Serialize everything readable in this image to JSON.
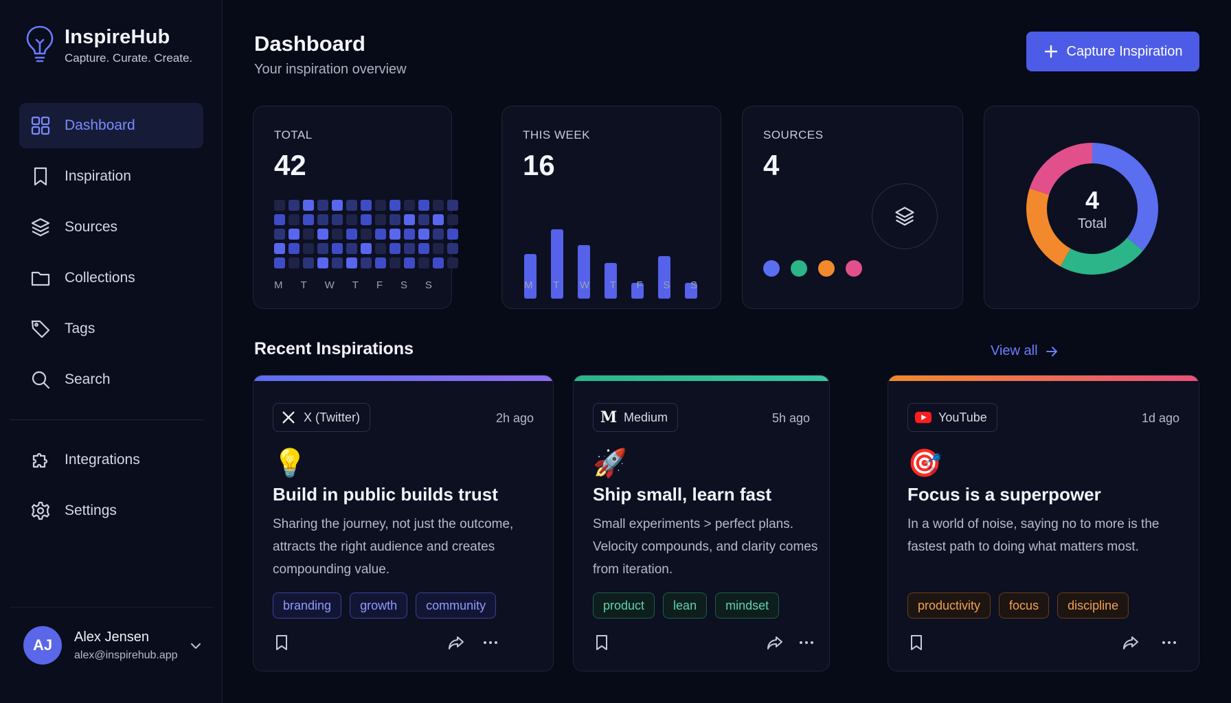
{
  "brand": {
    "name": "InspireHub",
    "tagline": "Capture. Curate. Create."
  },
  "nav": {
    "items": [
      {
        "label": "Dashboard",
        "icon": "grid-icon",
        "active": true
      },
      {
        "label": "Inspiration",
        "icon": "bookmark-icon"
      },
      {
        "label": "Sources",
        "icon": "layers-icon"
      },
      {
        "label": "Collections",
        "icon": "folder-icon"
      },
      {
        "label": "Tags",
        "icon": "tag-icon"
      },
      {
        "label": "Search",
        "icon": "search-icon"
      }
    ],
    "secondary": [
      {
        "label": "Integrations",
        "icon": "puzzle-icon"
      },
      {
        "label": "Settings",
        "icon": "gear-icon"
      }
    ]
  },
  "user": {
    "initials": "AJ",
    "name": "Alex Jensen",
    "email": "alex@inspirehub.app"
  },
  "header": {
    "title": "Dashboard",
    "subtitle": "Your inspiration overview",
    "cta": "Capture Inspiration"
  },
  "stats": {
    "total": {
      "label": "TOTAL",
      "value": "42"
    },
    "week": {
      "label": "THIS WEEK",
      "value": "16"
    },
    "sources": {
      "label": "SOURCES",
      "value": "4"
    },
    "donut": {
      "value": "4",
      "label": "Total"
    }
  },
  "days": [
    "M",
    "T",
    "W",
    "T",
    "F",
    "S",
    "S"
  ],
  "weekly_bars": [
    0.5,
    0.78,
    0.6,
    0.4,
    0.18,
    0.48,
    0.18
  ],
  "source_colors": [
    "#5b6ef0",
    "#2bb589",
    "#f2892c",
    "#e2508b"
  ],
  "donut_segments": [
    0.36,
    0.22,
    0.22,
    0.2
  ],
  "recent": {
    "title": "Recent Inspirations",
    "view_all": "View all",
    "cards": [
      {
        "source": "X (Twitter)",
        "source_icon": "x-logo-icon",
        "time": "2h ago",
        "emoji": "💡",
        "title": "Build in public builds trust",
        "body": "Sharing the journey, not just the outcome, attracts the right audience and creates compounding value.",
        "tags": [
          "branding",
          "growth",
          "community"
        ],
        "accent": "#5b6ef0",
        "accent2": "#8d6cf0",
        "tag_color": "#8f9bff",
        "tag_border": "#3b4393",
        "tag_bg": "#121634"
      },
      {
        "source": "Medium",
        "source_icon": "medium-logo-icon",
        "time": "5h ago",
        "emoji": "🚀",
        "title": "Ship small, learn fast",
        "body": "Small experiments > perfect plans. Velocity compounds, and clarity comes from iteration.",
        "tags": [
          "product",
          "lean",
          "mindset"
        ],
        "accent": "#2bb589",
        "accent2": "#35c7a0",
        "tag_color": "#5fd3ad",
        "tag_border": "#1f5f4c",
        "tag_bg": "#0d1e1d"
      },
      {
        "source": "YouTube",
        "source_icon": "youtube-logo-icon",
        "time": "1d ago",
        "emoji": "🎯",
        "title": "Focus is a superpower",
        "body": "In a world of noise, saying no to more is the fastest path to doing what matters most.",
        "tags": [
          "productivity",
          "focus",
          "discipline"
        ],
        "accent": "#f2892c",
        "accent2": "#e9507a",
        "tag_color": "#f5a050",
        "tag_border": "#6a3d1b",
        "tag_bg": "#1d1511"
      }
    ]
  }
}
